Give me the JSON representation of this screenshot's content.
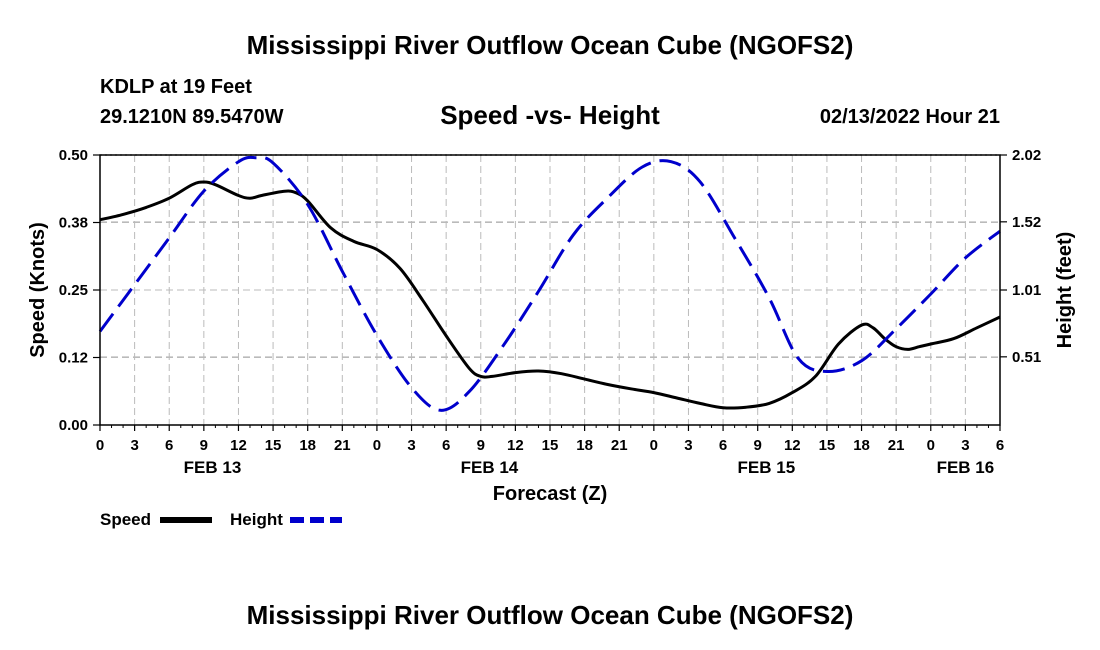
{
  "header": {
    "title": "Mississippi River Outflow Ocean Cube (NGOFS2)",
    "station": "KDLP at 19 Feet",
    "coords": "29.1210N  89.5470W",
    "subtitle": "Speed -vs- Height",
    "datetime": "02/13/2022 Hour 21"
  },
  "footer": {
    "title": "Mississippi River Outflow Ocean Cube (NGOFS2)"
  },
  "chart_data": {
    "type": "line",
    "title": "Speed -vs- Height",
    "xlabel": "Forecast (Z)",
    "ylabel_left": "Speed (Knots)",
    "ylabel_right": "Height (feet)",
    "x_range_hours": [
      0,
      78
    ],
    "x_tick_step_hours": 3,
    "x_tick_labels": [
      "0",
      "3",
      "6",
      "9",
      "12",
      "15",
      "18",
      "21",
      "0",
      "3",
      "6",
      "9",
      "12",
      "15",
      "18",
      "21",
      "0",
      "3",
      "6",
      "9",
      "12",
      "15",
      "18",
      "21",
      "0",
      "3",
      "6"
    ],
    "date_labels": [
      {
        "label": "FEB 13",
        "hour": 9.75
      },
      {
        "label": "FEB 14",
        "hour": 33.75
      },
      {
        "label": "FEB 15",
        "hour": 57.75
      },
      {
        "label": "FEB 16",
        "hour": 75
      }
    ],
    "y_left": {
      "min": 0.0,
      "max": 0.5,
      "ticks": [
        0.0,
        0.125,
        0.25,
        0.375,
        0.5
      ],
      "tick_labels": [
        "0.00",
        "0.12",
        "0.25",
        "0.38",
        "0.50"
      ]
    },
    "y_right": {
      "min": 0.0,
      "max": 2.02,
      "ticks": [
        0.51,
        1.01,
        1.52,
        2.02
      ],
      "tick_labels": [
        "0.51",
        "1.01",
        "1.52",
        "2.02"
      ]
    },
    "grid": true,
    "legend": {
      "position": "bottom-left"
    },
    "series": [
      {
        "name": "Speed",
        "axis": "left",
        "color": "#000000",
        "style": "solid",
        "x": [
          0,
          2,
          4,
          6,
          8,
          9,
          10,
          12,
          13,
          14,
          16,
          17,
          18,
          20,
          22,
          24,
          26,
          28,
          30,
          32,
          33,
          34,
          36,
          38,
          40,
          42,
          44,
          46,
          48,
          50,
          52,
          54,
          56,
          58,
          60,
          62,
          64,
          66,
          67,
          68,
          69,
          70,
          71,
          72,
          74,
          76,
          78
        ],
        "values": [
          0.38,
          0.39,
          0.403,
          0.42,
          0.445,
          0.45,
          0.445,
          0.425,
          0.42,
          0.425,
          0.433,
          0.43,
          0.415,
          0.365,
          0.34,
          0.325,
          0.29,
          0.23,
          0.165,
          0.105,
          0.09,
          0.09,
          0.097,
          0.1,
          0.095,
          0.085,
          0.075,
          0.067,
          0.06,
          0.05,
          0.04,
          0.032,
          0.033,
          0.04,
          0.06,
          0.09,
          0.15,
          0.185,
          0.18,
          0.16,
          0.145,
          0.14,
          0.145,
          0.15,
          0.16,
          0.18,
          0.2
        ]
      },
      {
        "name": "Height",
        "axis": "right",
        "color": "#0000cc",
        "style": "dashed",
        "x": [
          0,
          3,
          6,
          9,
          12,
          13.5,
          15,
          18,
          21,
          24,
          27,
          29.5,
          32,
          35,
          38,
          41,
          44,
          47,
          49.5,
          52,
          55,
          58,
          60.5,
          63,
          66,
          69,
          72,
          75,
          78
        ],
        "values": [
          0.7,
          1.05,
          1.4,
          1.75,
          1.97,
          2.0,
          1.96,
          1.65,
          1.15,
          0.67,
          0.28,
          0.11,
          0.25,
          0.6,
          1.0,
          1.42,
          1.7,
          1.93,
          1.97,
          1.82,
          1.4,
          0.95,
          0.5,
          0.4,
          0.48,
          0.72,
          0.98,
          1.25,
          1.45
        ]
      }
    ]
  }
}
